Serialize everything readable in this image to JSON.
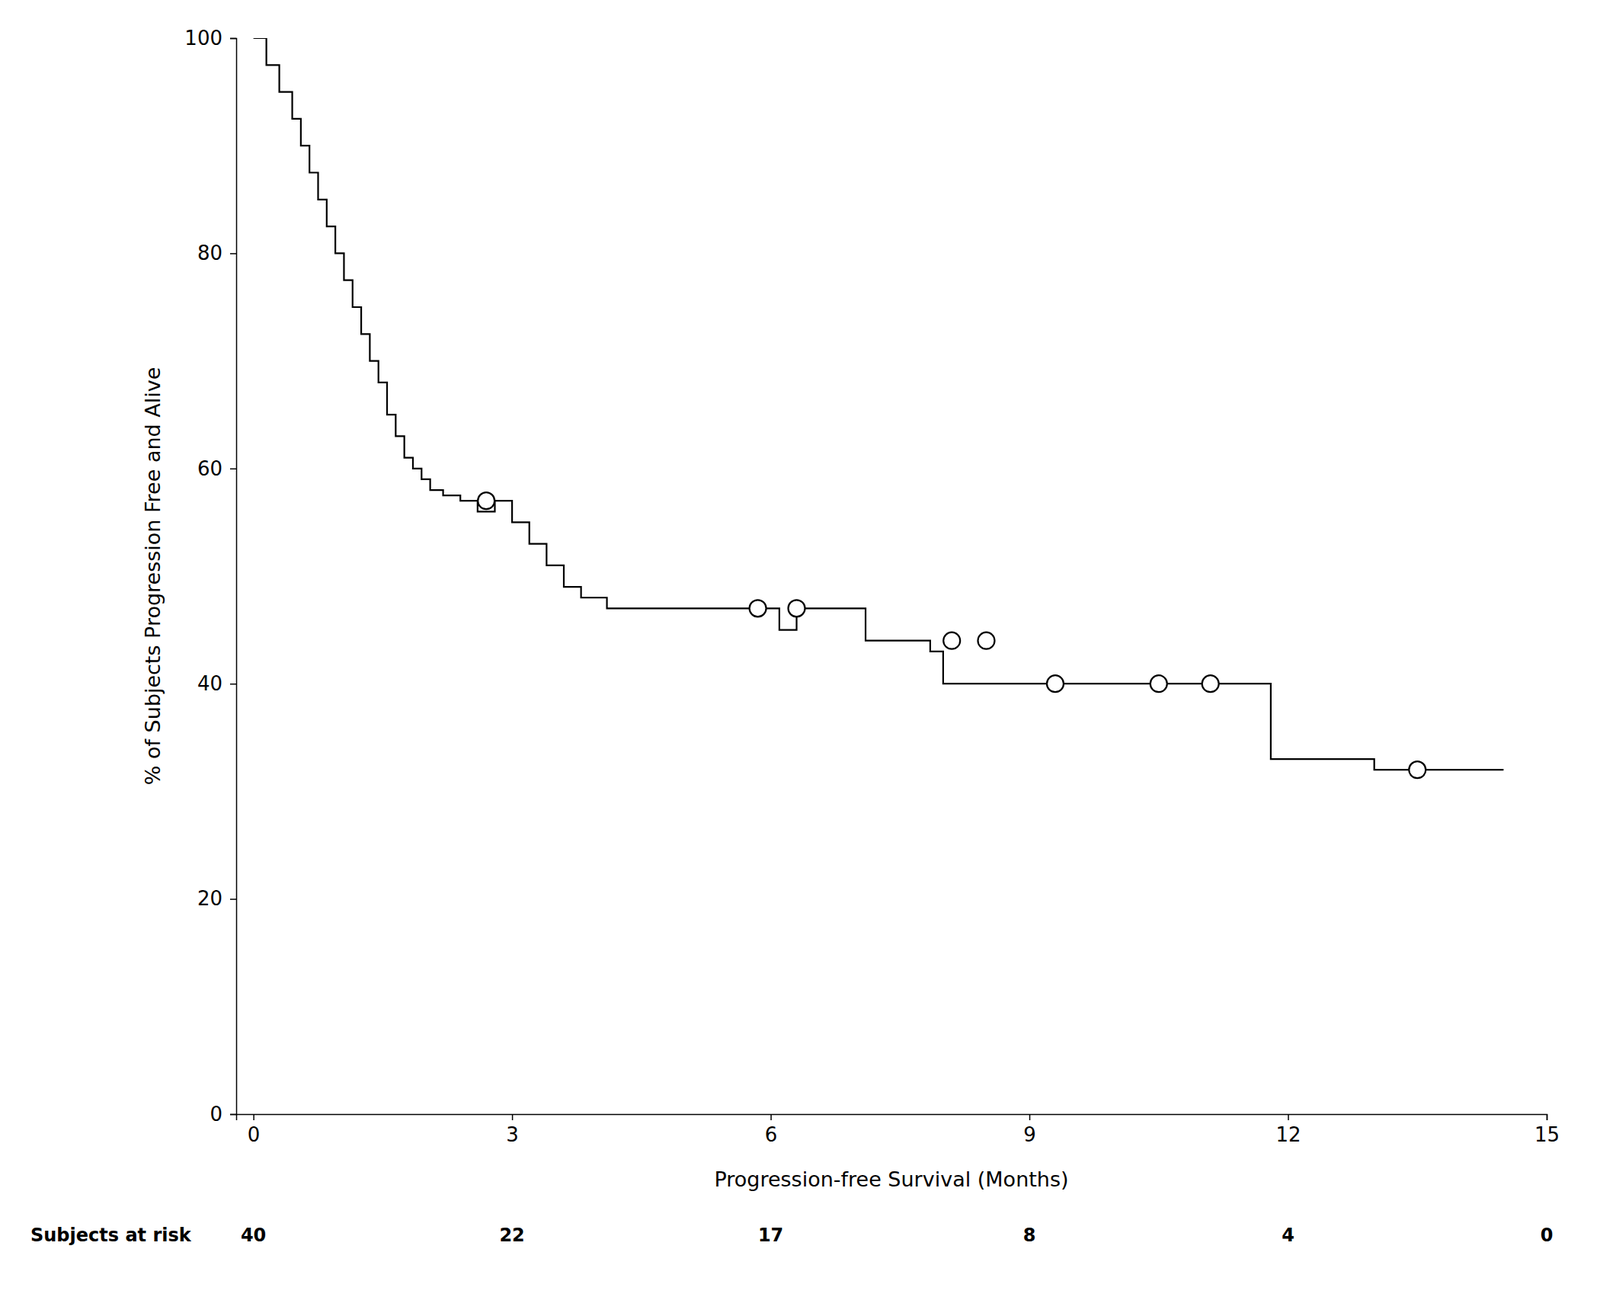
{
  "chart_data": {
    "type": "line",
    "xlabel": "Progression-free Survival (Months)",
    "ylabel": "% of Subjects Progression Free and Alive",
    "xlim": [
      -0.2,
      15
    ],
    "ylim": [
      0,
      100
    ],
    "xticks": [
      0,
      3,
      6,
      9,
      12,
      15
    ],
    "yticks": [
      0,
      20,
      40,
      60,
      80,
      100
    ],
    "grid": false,
    "series": [
      {
        "type": "step",
        "color": "#000000",
        "x": [
          0,
          0.15,
          0.3,
          0.45,
          0.55,
          0.65,
          0.75,
          0.85,
          0.95,
          1.05,
          1.15,
          1.25,
          1.35,
          1.45,
          1.55,
          1.65,
          1.75,
          1.85,
          1.95,
          2.05,
          2.2,
          2.4,
          2.6,
          2.8,
          3.0,
          3.2,
          3.4,
          3.6,
          3.8,
          4.1,
          4.4,
          4.7,
          5.0,
          5.3,
          5.6,
          5.9,
          6.1,
          6.3,
          6.55,
          6.8,
          7.1,
          7.4,
          7.65,
          7.85,
          8.0,
          8.25,
          8.5,
          8.75,
          9.0,
          9.3,
          9.6,
          9.9,
          10.2,
          10.5,
          10.8,
          11.1,
          11.5,
          11.8,
          12.0,
          12.5,
          13.0,
          13.5,
          14.0,
          14.5
        ],
        "values": [
          100,
          97.5,
          95,
          92.5,
          90,
          87.5,
          85,
          82.5,
          80,
          77.5,
          75,
          72.5,
          70,
          68,
          65,
          63,
          61,
          60,
          59,
          58,
          57.5,
          57,
          56,
          57,
          55,
          53,
          51,
          49,
          48,
          47,
          47,
          47,
          47,
          47,
          47,
          47,
          45,
          47,
          47,
          47,
          44,
          44,
          44,
          43,
          40,
          40,
          40,
          40,
          40,
          40,
          40,
          40,
          40,
          40,
          40,
          40,
          40,
          33,
          33,
          33,
          32,
          32,
          32,
          32
        ]
      },
      {
        "type": "scatter",
        "marker": "circle",
        "color": "#000000",
        "x": [
          2.7,
          5.85,
          6.3,
          8.1,
          8.5,
          9.3,
          10.5,
          11.1,
          13.5
        ],
        "values": [
          57,
          47,
          47,
          44,
          44,
          40,
          40,
          40,
          32
        ]
      }
    ],
    "risk_table": {
      "label": "Subjects at risk",
      "x": [
        0,
        3,
        6,
        9,
        12,
        15
      ],
      "values": [
        40,
        22,
        17,
        8,
        4,
        0
      ]
    }
  }
}
